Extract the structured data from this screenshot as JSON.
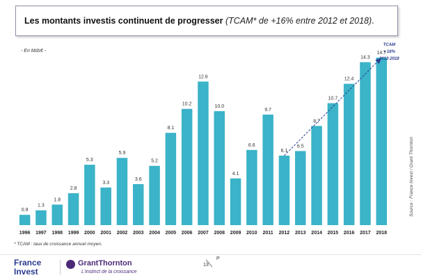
{
  "header": {
    "title_bold": "Les montants investis continuent de progresser",
    "title_italic": "(TCAM* de +16% entre 2012 et 2018)",
    "title_end": "."
  },
  "chart_data": {
    "type": "bar",
    "unit_label": "- En Mds€ -",
    "categories": [
      "1996",
      "1997",
      "1998",
      "1999",
      "2000",
      "2001",
      "2002",
      "2003",
      "2004",
      "2005",
      "2006",
      "2007",
      "2008",
      "2009",
      "2010",
      "2011",
      "2012",
      "2013",
      "2014",
      "2015",
      "2016",
      "2017",
      "2018"
    ],
    "values": [
      0.9,
      1.3,
      1.8,
      2.8,
      5.3,
      3.3,
      5.9,
      3.6,
      5.2,
      8.1,
      10.2,
      12.6,
      10.0,
      4.1,
      6.6,
      9.7,
      6.1,
      6.5,
      8.7,
      10.7,
      12.4,
      14.3,
      14.7
    ],
    "value_labels": [
      "0.9",
      "1.3",
      "1.8",
      "2.8",
      "5.3",
      "3.3",
      "5.9",
      "3.6",
      "5.2",
      "8.1",
      "10.2",
      "12.6",
      "10.0",
      "4.1",
      "6.6",
      "9.7",
      "6.1",
      "6.5",
      "8.7",
      "10.7",
      "12.4",
      "14.3",
      "14.7"
    ],
    "ylim": [
      0,
      15
    ],
    "bar_color": "#3bb3c8",
    "trend": {
      "from": "2012",
      "to": "2018",
      "label_lines": [
        "TCAM",
        "+ 16%",
        "2012-2018"
      ],
      "color": "#2b3b8f"
    }
  },
  "footnote": "* TCAM : taux de croissance annuel moyen.",
  "source": "Source : France Invest / Grant Thornton",
  "footer": {
    "brand1_line1": "France",
    "brand1_line2": "Invest",
    "brand2_name": "GrantThornton",
    "brand2_tagline": "L'instinct de la croissance",
    "page_number": "13",
    "page_letter": "P"
  }
}
